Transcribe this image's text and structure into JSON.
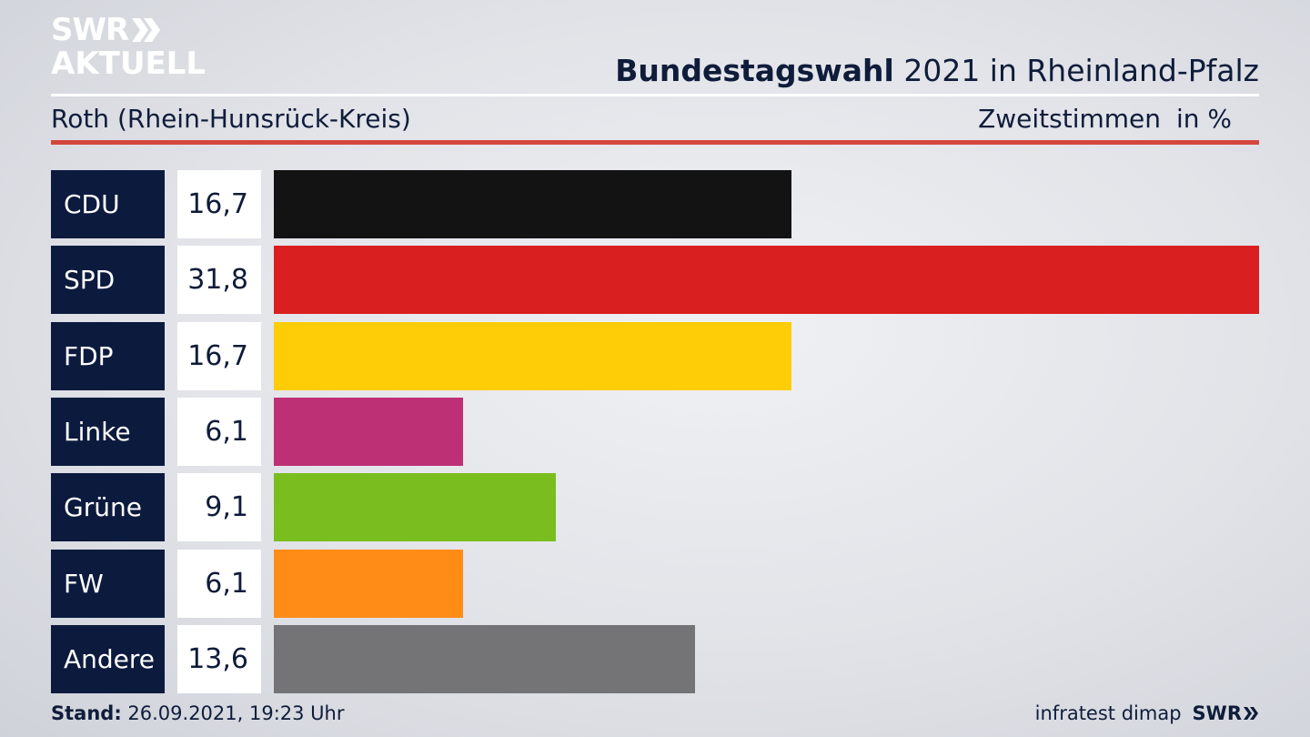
{
  "header": {
    "logo_top": "SWR",
    "logo_bottom": "AKTUELL",
    "title_bold": "Bundestagswahl",
    "title_rest": " 2021 in Rheinland-Pfalz",
    "region": "Roth (Rhein-Hunsrück-Kreis)",
    "vote_type": "Zweitstimmen",
    "unit": "in %"
  },
  "colors": {
    "label_bg": "#0c1a3e",
    "accent_rule": "#d4473e"
  },
  "chart_data": {
    "type": "bar",
    "orientation": "horizontal",
    "title": "Bundestagswahl 2021 in Rheinland-Pfalz",
    "subtitle": "Roth (Rhein-Hunsrück-Kreis)",
    "xlabel": "",
    "ylabel": "",
    "unit": "in %",
    "grid": false,
    "categories": [
      "CDU",
      "SPD",
      "FDP",
      "Linke",
      "Grüne",
      "FW",
      "Andere"
    ],
    "values": [
      16.7,
      31.8,
      16.7,
      6.1,
      9.1,
      6.1,
      13.6
    ],
    "value_labels": [
      "16,7",
      "31,8",
      "16,7",
      "6,1",
      "9,1",
      "6,1",
      "13,6"
    ],
    "colors": [
      "#131313",
      "#d91f1f",
      "#ffcc08",
      "#be3075",
      "#79be1e",
      "#ff8c17",
      "#747476"
    ],
    "xlim": [
      0,
      31.8
    ]
  },
  "footer": {
    "stand_label": "Stand:",
    "stand_value": " 26.09.2021, 19:23 Uhr",
    "source": "infratest dimap",
    "brand": "SWR"
  }
}
